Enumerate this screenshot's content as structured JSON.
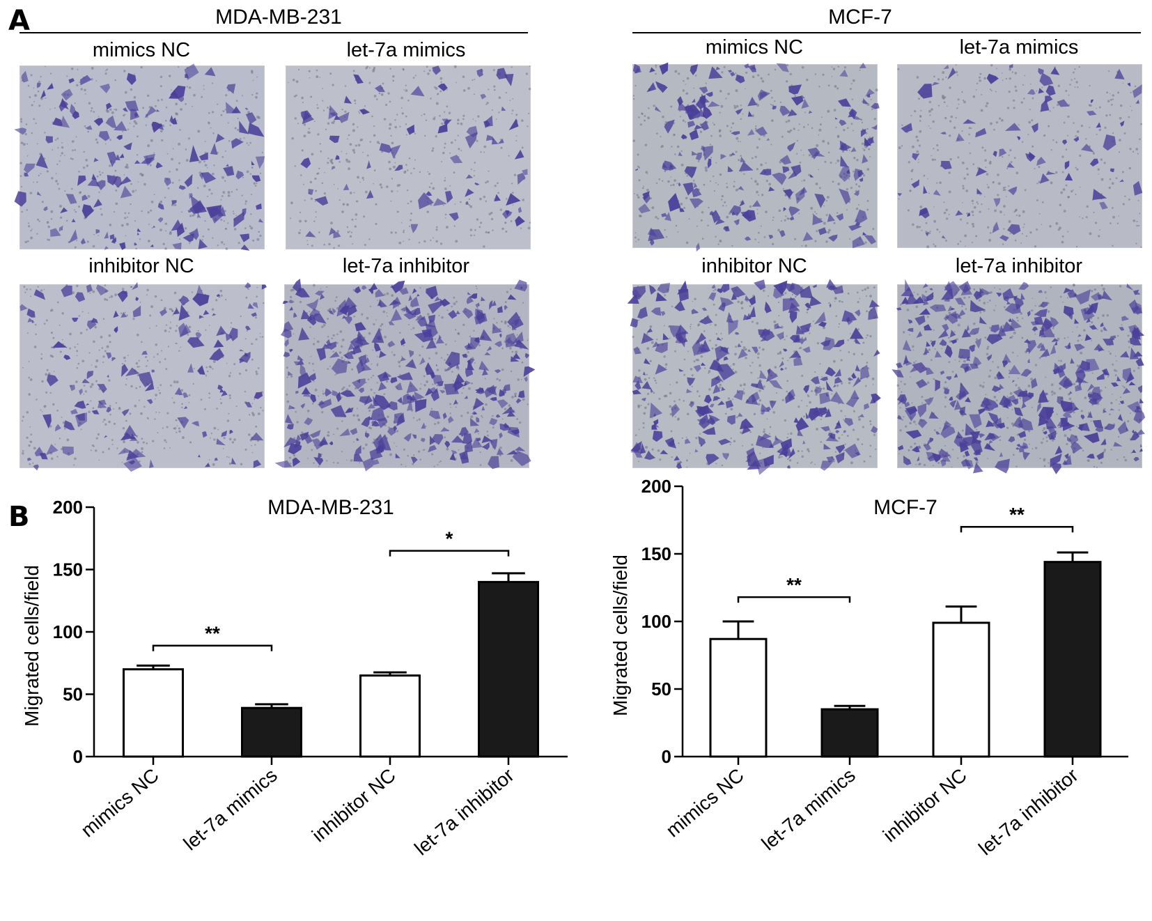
{
  "panel_a": {
    "letter": "A",
    "groups": [
      {
        "title": "MDA-MB-231",
        "images": [
          {
            "label": "mimics NC",
            "density": 130,
            "seed": 11,
            "bg": "#b9bccb"
          },
          {
            "label": "let-7a mimics",
            "density": 65,
            "seed": 23,
            "bg": "#bdbfcb"
          },
          {
            "label": "inhibitor NC",
            "density": 120,
            "seed": 37,
            "bg": "#bcbecb"
          },
          {
            "label": "let-7a inhibitor",
            "density": 320,
            "seed": 49,
            "bg": "#b3b6c2"
          }
        ]
      },
      {
        "title": "MCF-7",
        "images": [
          {
            "label": "mimics NC",
            "density": 170,
            "seed": 61,
            "bg": "#b4b9c2"
          },
          {
            "label": "let-7a mimics",
            "density": 70,
            "seed": 73,
            "bg": "#b8bbc6"
          },
          {
            "label": "inhibitor NC",
            "density": 260,
            "seed": 89,
            "bg": "#b7bbc4"
          },
          {
            "label": "let-7a inhibitor",
            "density": 360,
            "seed": 97,
            "bg": "#b0b4bf"
          }
        ]
      }
    ]
  },
  "panel_b": {
    "letter": "B"
  },
  "colors": {
    "cell_stain": "#4b3f9a",
    "bar_filled": "#1a1a1a",
    "bar_open": "#ffffff",
    "axis": "#000000"
  },
  "chart_data": [
    {
      "type": "bar",
      "title": "MDA-MB-231",
      "ylabel": "Migrated cells/field",
      "xlabel": "",
      "ylim": [
        0,
        200
      ],
      "yticks": [
        0,
        50,
        100,
        150,
        200
      ],
      "categories": [
        "mimics NC",
        "let-7a mimics",
        "inhibitor NC",
        "let-7a inhibitor"
      ],
      "values": [
        70,
        39,
        65,
        140
      ],
      "errors": [
        3,
        3,
        2.5,
        7
      ],
      "fill": [
        "open",
        "filled",
        "open",
        "filled"
      ],
      "significance": [
        {
          "from": 0,
          "to": 1,
          "label": "**",
          "y": 89
        },
        {
          "from": 2,
          "to": 3,
          "label": "*",
          "y": 165
        }
      ]
    },
    {
      "type": "bar",
      "title": "MCF-7",
      "ylabel": "Migrated cells/field",
      "xlabel": "",
      "ylim": [
        0,
        200
      ],
      "yticks": [
        0,
        50,
        100,
        150,
        200
      ],
      "categories": [
        "mimics NC",
        "let-7a mimics",
        "inhibitor NC",
        "let-7a inhibitor"
      ],
      "values": [
        87,
        35,
        99,
        144
      ],
      "errors": [
        13,
        2.5,
        12,
        7
      ],
      "fill": [
        "open",
        "filled",
        "open",
        "filled"
      ],
      "significance": [
        {
          "from": 0,
          "to": 1,
          "label": "**",
          "y": 118
        },
        {
          "from": 2,
          "to": 3,
          "label": "**",
          "y": 170
        }
      ]
    }
  ]
}
